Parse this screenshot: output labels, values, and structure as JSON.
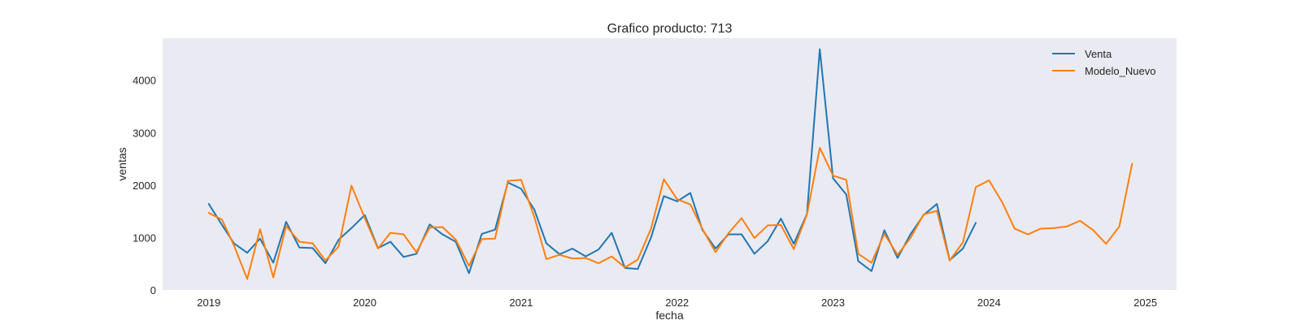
{
  "chart_data": {
    "type": "line",
    "title": "Grafico producto: 713",
    "xlabel": "fecha",
    "ylabel": "ventas",
    "xlim": [
      "2018-09-15",
      "2025-03-15"
    ],
    "ylim": [
      0,
      4800
    ],
    "x_ticks": [
      {
        "date": "2019-01-01",
        "label": "2019"
      },
      {
        "date": "2020-01-01",
        "label": "2020"
      },
      {
        "date": "2021-01-01",
        "label": "2021"
      },
      {
        "date": "2022-01-01",
        "label": "2022"
      },
      {
        "date": "2023-01-01",
        "label": "2023"
      },
      {
        "date": "2024-01-01",
        "label": "2024"
      },
      {
        "date": "2025-01-01",
        "label": "2025"
      }
    ],
    "y_ticks": [
      0,
      1000,
      2000,
      3000,
      4000
    ],
    "grid": false,
    "legend_position": "top-right",
    "background": "#eaeaf2",
    "series": [
      {
        "name": "Venta",
        "color": "#1f77b4",
        "points": [
          [
            "2019-01-01",
            1640
          ],
          [
            "2019-02-01",
            1240
          ],
          [
            "2019-03-01",
            890
          ],
          [
            "2019-04-01",
            710
          ],
          [
            "2019-05-01",
            980
          ],
          [
            "2019-06-01",
            520
          ],
          [
            "2019-07-01",
            1300
          ],
          [
            "2019-08-01",
            810
          ],
          [
            "2019-09-01",
            800
          ],
          [
            "2019-10-01",
            510
          ],
          [
            "2019-11-01",
            960
          ],
          [
            "2019-12-01",
            1180
          ],
          [
            "2020-01-01",
            1430
          ],
          [
            "2020-02-01",
            800
          ],
          [
            "2020-03-01",
            920
          ],
          [
            "2020-04-01",
            630
          ],
          [
            "2020-05-01",
            690
          ],
          [
            "2020-06-01",
            1250
          ],
          [
            "2020-07-01",
            1060
          ],
          [
            "2020-08-01",
            920
          ],
          [
            "2020-09-01",
            320
          ],
          [
            "2020-10-01",
            1070
          ],
          [
            "2020-11-01",
            1150
          ],
          [
            "2020-12-01",
            2050
          ],
          [
            "2021-01-01",
            1930
          ],
          [
            "2021-02-01",
            1530
          ],
          [
            "2021-03-01",
            890
          ],
          [
            "2021-04-01",
            680
          ],
          [
            "2021-05-01",
            790
          ],
          [
            "2021-06-01",
            640
          ],
          [
            "2021-07-01",
            770
          ],
          [
            "2021-08-01",
            1090
          ],
          [
            "2021-09-01",
            420
          ],
          [
            "2021-10-01",
            400
          ],
          [
            "2021-11-01",
            1000
          ],
          [
            "2021-12-01",
            1790
          ],
          [
            "2022-01-01",
            1690
          ],
          [
            "2022-02-01",
            1850
          ],
          [
            "2022-03-01",
            1150
          ],
          [
            "2022-04-01",
            790
          ],
          [
            "2022-05-01",
            1060
          ],
          [
            "2022-06-01",
            1060
          ],
          [
            "2022-07-01",
            690
          ],
          [
            "2022-08-01",
            930
          ],
          [
            "2022-09-01",
            1360
          ],
          [
            "2022-10-01",
            880
          ],
          [
            "2022-11-01",
            1450
          ],
          [
            "2022-12-01",
            4590
          ],
          [
            "2023-01-01",
            2130
          ],
          [
            "2023-02-01",
            1820
          ],
          [
            "2023-03-01",
            550
          ],
          [
            "2023-04-01",
            360
          ],
          [
            "2023-05-01",
            1140
          ],
          [
            "2023-06-01",
            610
          ],
          [
            "2023-07-01",
            1060
          ],
          [
            "2023-08-01",
            1430
          ],
          [
            "2023-09-01",
            1640
          ],
          [
            "2023-10-01",
            570
          ],
          [
            "2023-11-01",
            790
          ],
          [
            "2023-12-01",
            1280
          ]
        ]
      },
      {
        "name": "Modelo_Nuevo",
        "color": "#ff7f0e",
        "points": [
          [
            "2019-01-01",
            1470
          ],
          [
            "2019-02-01",
            1340
          ],
          [
            "2019-03-01",
            850
          ],
          [
            "2019-04-01",
            210
          ],
          [
            "2019-05-01",
            1160
          ],
          [
            "2019-06-01",
            240
          ],
          [
            "2019-07-01",
            1220
          ],
          [
            "2019-08-01",
            920
          ],
          [
            "2019-09-01",
            890
          ],
          [
            "2019-10-01",
            560
          ],
          [
            "2019-11-01",
            830
          ],
          [
            "2019-12-01",
            1990
          ],
          [
            "2020-01-01",
            1370
          ],
          [
            "2020-02-01",
            790
          ],
          [
            "2020-03-01",
            1090
          ],
          [
            "2020-04-01",
            1060
          ],
          [
            "2020-05-01",
            720
          ],
          [
            "2020-06-01",
            1190
          ],
          [
            "2020-07-01",
            1200
          ],
          [
            "2020-08-01",
            960
          ],
          [
            "2020-09-01",
            460
          ],
          [
            "2020-10-01",
            970
          ],
          [
            "2020-11-01",
            980
          ],
          [
            "2020-12-01",
            2080
          ],
          [
            "2021-01-01",
            2100
          ],
          [
            "2021-02-01",
            1390
          ],
          [
            "2021-03-01",
            590
          ],
          [
            "2021-04-01",
            670
          ],
          [
            "2021-05-01",
            600
          ],
          [
            "2021-06-01",
            610
          ],
          [
            "2021-07-01",
            510
          ],
          [
            "2021-08-01",
            640
          ],
          [
            "2021-09-01",
            430
          ],
          [
            "2021-10-01",
            580
          ],
          [
            "2021-11-01",
            1170
          ],
          [
            "2021-12-01",
            2110
          ],
          [
            "2022-01-01",
            1730
          ],
          [
            "2022-02-01",
            1630
          ],
          [
            "2022-03-01",
            1170
          ],
          [
            "2022-04-01",
            720
          ],
          [
            "2022-05-01",
            1080
          ],
          [
            "2022-06-01",
            1370
          ],
          [
            "2022-07-01",
            990
          ],
          [
            "2022-08-01",
            1230
          ],
          [
            "2022-09-01",
            1240
          ],
          [
            "2022-10-01",
            780
          ],
          [
            "2022-11-01",
            1440
          ],
          [
            "2022-12-01",
            2710
          ],
          [
            "2023-01-01",
            2180
          ],
          [
            "2023-02-01",
            2100
          ],
          [
            "2023-03-01",
            690
          ],
          [
            "2023-04-01",
            520
          ],
          [
            "2023-05-01",
            1070
          ],
          [
            "2023-06-01",
            670
          ],
          [
            "2023-07-01",
            990
          ],
          [
            "2023-08-01",
            1440
          ],
          [
            "2023-09-01",
            1510
          ],
          [
            "2023-10-01",
            560
          ],
          [
            "2023-11-01",
            910
          ],
          [
            "2023-12-01",
            1960
          ],
          [
            "2024-01-01",
            2090
          ],
          [
            "2024-02-01",
            1670
          ],
          [
            "2024-03-01",
            1170
          ],
          [
            "2024-04-01",
            1060
          ],
          [
            "2024-05-01",
            1170
          ],
          [
            "2024-06-01",
            1180
          ],
          [
            "2024-07-01",
            1210
          ],
          [
            "2024-08-01",
            1320
          ],
          [
            "2024-09-01",
            1140
          ],
          [
            "2024-10-01",
            880
          ],
          [
            "2024-11-01",
            1210
          ],
          [
            "2024-12-01",
            2410
          ]
        ]
      }
    ]
  }
}
